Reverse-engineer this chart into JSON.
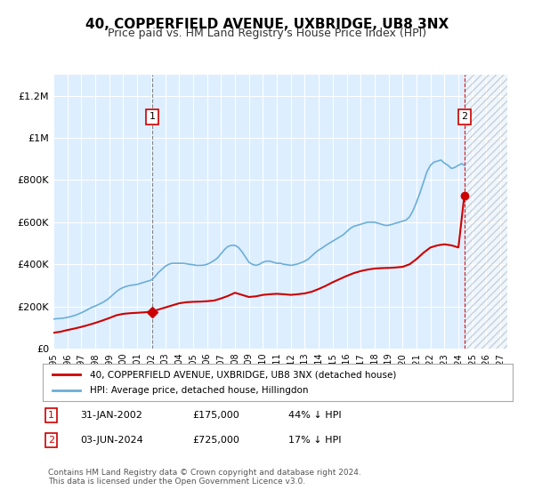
{
  "title": "40, COPPERFIELD AVENUE, UXBRIDGE, UB8 3NX",
  "subtitle": "Price paid vs. HM Land Registry's House Price Index (HPI)",
  "title_fontsize": 11,
  "subtitle_fontsize": 9,
  "ylim": [
    0,
    1300000
  ],
  "yticks": [
    0,
    200000,
    400000,
    600000,
    800000,
    1000000,
    1200000
  ],
  "ytick_labels": [
    "£0",
    "£200K",
    "£400K",
    "£600K",
    "£800K",
    "£1M",
    "£1.2M"
  ],
  "xstart": 1995.0,
  "xend": 2027.5,
  "xticks": [
    1995,
    1996,
    1997,
    1998,
    1999,
    2000,
    2001,
    2002,
    2003,
    2004,
    2005,
    2006,
    2007,
    2008,
    2009,
    2010,
    2011,
    2012,
    2013,
    2014,
    2015,
    2016,
    2017,
    2018,
    2019,
    2020,
    2021,
    2022,
    2023,
    2024,
    2025,
    2026,
    2027
  ],
  "hpi_color": "#6baed6",
  "price_color": "#cc0000",
  "bg_color": "#ddeeff",
  "grid_color": "#ffffff",
  "hatch_color": "#cccccc",
  "point1_x": 2002.08,
  "point1_y": 175000,
  "point2_x": 2024.42,
  "point2_y": 725000,
  "dashed_line_x1": 2002.08,
  "dashed_line_x2": 2024.42,
  "legend_line1": "40, COPPERFIELD AVENUE, UXBRIDGE, UB8 3NX (detached house)",
  "legend_line2": "HPI: Average price, detached house, Hillingdon",
  "table_row1": [
    "1",
    "31-JAN-2002",
    "£175,000",
    "44% ↓ HPI"
  ],
  "table_row2": [
    "2",
    "03-JUN-2024",
    "£725,000",
    "17% ↓ HPI"
  ],
  "footer": "Contains HM Land Registry data © Crown copyright and database right 2024.\nThis data is licensed under the Open Government Licence v3.0.",
  "hpi_data_x": [
    1995.0,
    1995.25,
    1995.5,
    1995.75,
    1996.0,
    1996.25,
    1996.5,
    1996.75,
    1997.0,
    1997.25,
    1997.5,
    1997.75,
    1998.0,
    1998.25,
    1998.5,
    1998.75,
    1999.0,
    1999.25,
    1999.5,
    1999.75,
    2000.0,
    2000.25,
    2000.5,
    2000.75,
    2001.0,
    2001.25,
    2001.5,
    2001.75,
    2002.0,
    2002.25,
    2002.5,
    2002.75,
    2003.0,
    2003.25,
    2003.5,
    2003.75,
    2004.0,
    2004.25,
    2004.5,
    2004.75,
    2005.0,
    2005.25,
    2005.5,
    2005.75,
    2006.0,
    2006.25,
    2006.5,
    2006.75,
    2007.0,
    2007.25,
    2007.5,
    2007.75,
    2008.0,
    2008.25,
    2008.5,
    2008.75,
    2009.0,
    2009.25,
    2009.5,
    2009.75,
    2010.0,
    2010.25,
    2010.5,
    2010.75,
    2011.0,
    2011.25,
    2011.5,
    2011.75,
    2012.0,
    2012.25,
    2012.5,
    2012.75,
    2013.0,
    2013.25,
    2013.5,
    2013.75,
    2014.0,
    2014.25,
    2014.5,
    2014.75,
    2015.0,
    2015.25,
    2015.5,
    2015.75,
    2016.0,
    2016.25,
    2016.5,
    2016.75,
    2017.0,
    2017.25,
    2017.5,
    2017.75,
    2018.0,
    2018.25,
    2018.5,
    2018.75,
    2019.0,
    2019.25,
    2019.5,
    2019.75,
    2020.0,
    2020.25,
    2020.5,
    2020.75,
    2021.0,
    2021.25,
    2021.5,
    2021.75,
    2022.0,
    2022.25,
    2022.5,
    2022.75,
    2023.0,
    2023.25,
    2023.5,
    2023.75,
    2024.0,
    2024.25,
    2024.42
  ],
  "hpi_data_y": [
    140000,
    142000,
    143000,
    145000,
    148000,
    152000,
    157000,
    163000,
    170000,
    178000,
    187000,
    196000,
    202000,
    210000,
    218000,
    228000,
    240000,
    255000,
    270000,
    282000,
    290000,
    296000,
    300000,
    302000,
    305000,
    310000,
    315000,
    320000,
    325000,
    340000,
    360000,
    375000,
    390000,
    400000,
    405000,
    405000,
    405000,
    405000,
    403000,
    400000,
    398000,
    395000,
    395000,
    396000,
    400000,
    408000,
    418000,
    430000,
    450000,
    470000,
    485000,
    490000,
    490000,
    480000,
    460000,
    435000,
    410000,
    400000,
    395000,
    400000,
    410000,
    415000,
    415000,
    410000,
    405000,
    405000,
    400000,
    398000,
    395000,
    398000,
    402000,
    408000,
    415000,
    425000,
    440000,
    455000,
    468000,
    478000,
    490000,
    500000,
    510000,
    520000,
    530000,
    540000,
    555000,
    570000,
    580000,
    585000,
    590000,
    595000,
    600000,
    600000,
    600000,
    595000,
    590000,
    585000,
    585000,
    590000,
    595000,
    600000,
    605000,
    610000,
    625000,
    655000,
    695000,
    740000,
    790000,
    840000,
    870000,
    885000,
    890000,
    895000,
    880000,
    870000,
    855000,
    860000,
    870000,
    878000,
    870000
  ],
  "price_data_x": [
    1995.0,
    1995.5,
    1996.0,
    1996.5,
    1997.0,
    1997.5,
    1998.0,
    1998.5,
    1999.0,
    1999.5,
    2000.0,
    2000.5,
    2001.0,
    2001.5,
    2002.0,
    2002.08,
    2002.5,
    2003.0,
    2003.5,
    2004.0,
    2004.5,
    2005.0,
    2005.5,
    2006.0,
    2006.5,
    2007.0,
    2007.5,
    2008.0,
    2008.5,
    2009.0,
    2009.5,
    2010.0,
    2010.5,
    2011.0,
    2011.5,
    2012.0,
    2012.5,
    2013.0,
    2013.5,
    2014.0,
    2014.5,
    2015.0,
    2015.5,
    2016.0,
    2016.5,
    2017.0,
    2017.5,
    2018.0,
    2018.5,
    2019.0,
    2019.5,
    2020.0,
    2020.5,
    2021.0,
    2021.5,
    2022.0,
    2022.5,
    2023.0,
    2023.5,
    2024.0,
    2024.42
  ],
  "price_data_y": [
    75000,
    80000,
    88000,
    95000,
    103000,
    112000,
    122000,
    133000,
    145000,
    158000,
    165000,
    168000,
    170000,
    172000,
    175000,
    175000,
    185000,
    195000,
    205000,
    215000,
    220000,
    222000,
    223000,
    225000,
    228000,
    238000,
    250000,
    265000,
    255000,
    245000,
    248000,
    255000,
    258000,
    260000,
    258000,
    255000,
    258000,
    262000,
    270000,
    283000,
    298000,
    315000,
    330000,
    345000,
    358000,
    368000,
    375000,
    380000,
    382000,
    383000,
    385000,
    388000,
    400000,
    425000,
    455000,
    480000,
    490000,
    495000,
    490000,
    480000,
    725000
  ]
}
